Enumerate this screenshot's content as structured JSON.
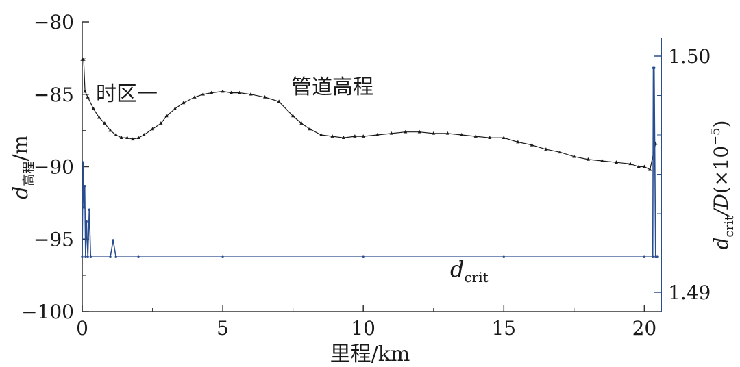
{
  "chart_data": {
    "type": "line",
    "xlabel": "里程/km",
    "x_ticks": [
      "0",
      "5",
      "10",
      "15",
      "20"
    ],
    "xlim": [
      0,
      20.6
    ],
    "y_left": {
      "label_main": "d",
      "label_sub": "高程",
      "label_unit": "/m",
      "ylim": [
        -100,
        -80
      ],
      "ticks": [
        "−80",
        "−85",
        "−90",
        "−95",
        "−100"
      ]
    },
    "y_right": {
      "label_main": "d",
      "label_sub": "crit",
      "label_mid": "/D",
      "label_scale": "(×10",
      "label_exp": "−5",
      "label_close": ")",
      "ylim": [
        1.49,
        1.5
      ],
      "ticks": [
        "1.50",
        "1.49"
      ]
    },
    "annotations": {
      "time_zone": "时区一",
      "pipe_elevation": "管道高程",
      "dcrit_main": "d",
      "dcrit_sub": "crit"
    },
    "series": [
      {
        "axis": "left",
        "color": "#1a1a1a",
        "marker": "triangle",
        "x": [
          0.0,
          0.05,
          0.1,
          0.2,
          0.4,
          0.6,
          0.8,
          1.0,
          1.2,
          1.4,
          1.6,
          1.8,
          2.0,
          2.2,
          2.5,
          2.8,
          3.0,
          3.3,
          3.6,
          4.0,
          4.3,
          4.6,
          5.0,
          5.3,
          5.6,
          6.0,
          6.5,
          7.0,
          7.5,
          7.8,
          8.1,
          8.5,
          8.9,
          9.3,
          9.7,
          10.0,
          10.5,
          11.0,
          11.5,
          12.0,
          12.5,
          13.0,
          13.5,
          14.0,
          14.5,
          15.0,
          15.5,
          16.0,
          16.5,
          17.0,
          17.5,
          18.0,
          18.5,
          19.0,
          19.5,
          19.8,
          20.0,
          20.2,
          20.4
        ],
        "y": [
          -82.6,
          -82.6,
          -84.8,
          -85.2,
          -86.0,
          -86.6,
          -87.0,
          -87.5,
          -87.8,
          -88.0,
          -88.0,
          -88.1,
          -88.0,
          -87.8,
          -87.4,
          -87.0,
          -86.5,
          -86.0,
          -85.6,
          -85.2,
          -85.0,
          -84.9,
          -84.8,
          -84.9,
          -84.9,
          -85.0,
          -85.2,
          -85.5,
          -86.5,
          -87.0,
          -87.4,
          -87.8,
          -87.9,
          -88.0,
          -87.9,
          -87.9,
          -87.8,
          -87.7,
          -87.6,
          -87.6,
          -87.7,
          -87.7,
          -87.8,
          -87.9,
          -88.0,
          -88.0,
          -88.3,
          -88.5,
          -88.8,
          -89.0,
          -89.3,
          -89.5,
          -89.6,
          -89.7,
          -89.8,
          -90.0,
          -90.0,
          -90.2,
          -88.4
        ]
      },
      {
        "axis": "right",
        "color": "#2a4d8f",
        "marker": "circle",
        "x": [
          0.0,
          0.03,
          0.06,
          0.09,
          0.12,
          0.15,
          0.2,
          0.25,
          0.3,
          1.0,
          1.1,
          1.2,
          2.0,
          5.0,
          10.0,
          15.0,
          20.0,
          20.3,
          20.32,
          20.35,
          20.4,
          20.45,
          20.48
        ],
        "y": [
          1.4915,
          1.4955,
          1.4936,
          1.4945,
          1.4915,
          1.493,
          1.4915,
          1.4935,
          1.4915,
          1.4915,
          1.4922,
          1.4915,
          1.4915,
          1.4915,
          1.4915,
          1.4915,
          1.4915,
          1.4915,
          1.4995,
          1.4995,
          1.4915,
          1.4915,
          1.4915
        ]
      }
    ]
  }
}
